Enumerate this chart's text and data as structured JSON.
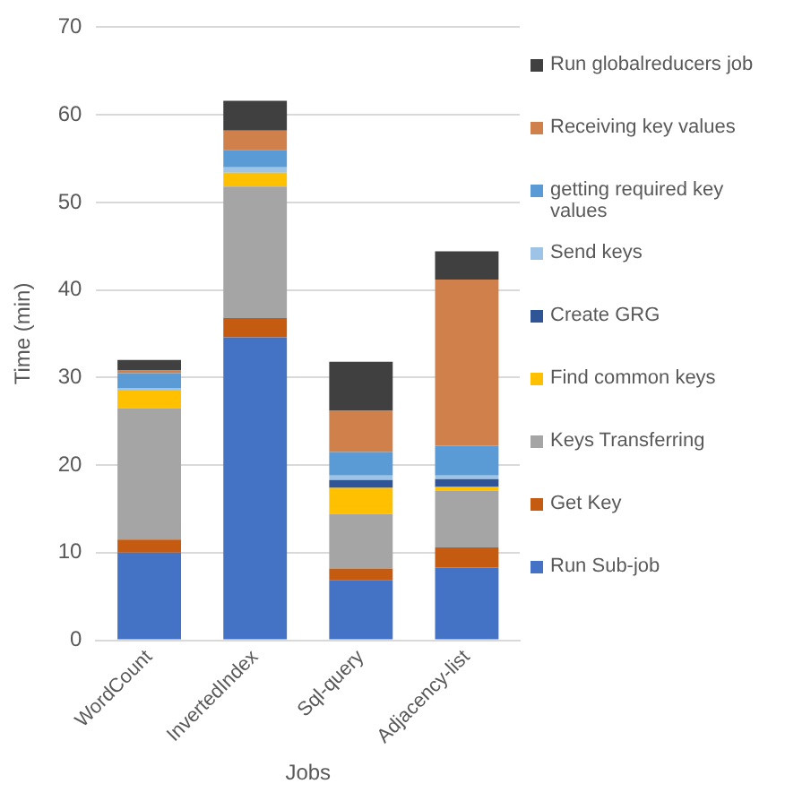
{
  "chart_data": {
    "type": "bar",
    "stacked": true,
    "xlabel": "Jobs",
    "ylabel": "Time (min)",
    "categories": [
      "WordCount",
      "InvertedIndex",
      "Sql-query",
      "Adjacency-list"
    ],
    "ylim": [
      0,
      70
    ],
    "yticks": [
      0,
      10,
      20,
      30,
      40,
      50,
      60,
      70
    ],
    "grid": "y",
    "legend": "right",
    "series": [
      {
        "name": "Run Sub-job",
        "color": "#4472c4",
        "values": [
          10,
          34.6,
          6.9,
          8.3
        ]
      },
      {
        "name": "Get Key",
        "color": "#c55a11",
        "values": [
          1.5,
          2.2,
          1.3,
          2.3
        ]
      },
      {
        "name": "Keys Transferring",
        "color": "#a5a5a5",
        "values": [
          15,
          15,
          6.2,
          6.5
        ]
      },
      {
        "name": "Find common keys",
        "color": "#ffc000",
        "values": [
          2,
          1.6,
          3,
          0.4
        ]
      },
      {
        "name": "Create GRG",
        "color": "#2f5597",
        "values": [
          0,
          0,
          0.9,
          0.9
        ]
      },
      {
        "name": "Send keys",
        "color": "#9dc3e6",
        "values": [
          0.3,
          0.6,
          0.5,
          0.4
        ]
      },
      {
        "name": "getting required key values",
        "color": "#5b9bd5",
        "values": [
          1.7,
          2,
          2.7,
          3.4
        ]
      },
      {
        "name": "Receiving key values",
        "color": "#d0804a",
        "values": [
          0.3,
          2.2,
          4.7,
          19
        ]
      },
      {
        "name": "Run globalreducers job",
        "color": "#404040",
        "values": [
          1.2,
          3.4,
          5.6,
          3.2
        ]
      }
    ]
  }
}
